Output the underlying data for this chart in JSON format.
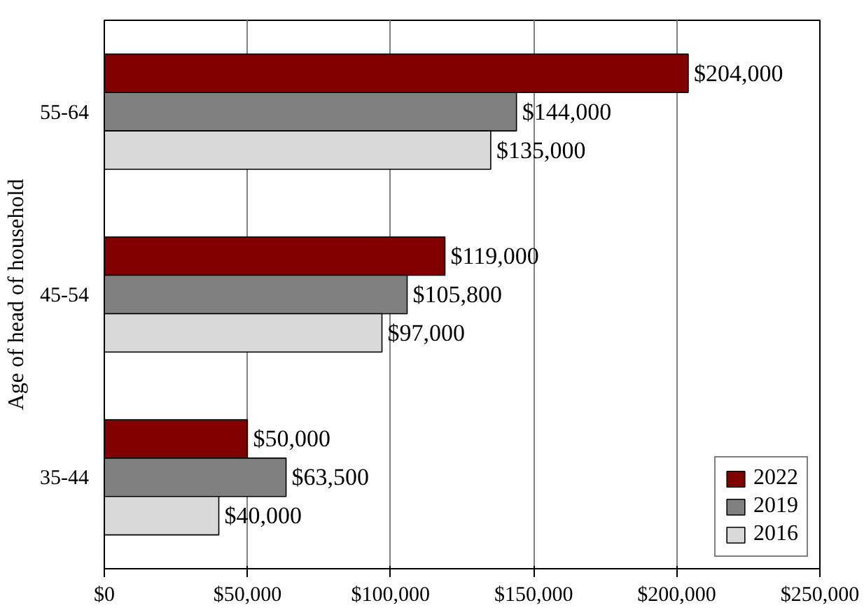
{
  "chart_data": {
    "type": "bar",
    "orientation": "horizontal",
    "ylabel": "Age of head of household",
    "categories": [
      "55-64",
      "45-54",
      "35-44"
    ],
    "series": [
      {
        "name": "2022",
        "color": "#800000",
        "values": [
          204000,
          119000,
          50000
        ],
        "value_labels": [
          "$204,000",
          "$119,000",
          "$50,000"
        ]
      },
      {
        "name": "2019",
        "color": "#808080",
        "values": [
          144000,
          105800,
          63500
        ],
        "value_labels": [
          "$144,000",
          "$105,800",
          "$63,500"
        ]
      },
      {
        "name": "2016",
        "color": "#d9d9d9",
        "values": [
          135000,
          97000,
          40000
        ],
        "value_labels": [
          "$135,000",
          "$97,000",
          "$40,000"
        ]
      }
    ],
    "xlim": [
      0,
      250000
    ],
    "xticks": [
      {
        "value": 0,
        "label": "$0"
      },
      {
        "value": 50000,
        "label": "$50,000"
      },
      {
        "value": 100000,
        "label": "$100,000"
      },
      {
        "value": 150000,
        "label": "$150,000"
      },
      {
        "value": 200000,
        "label": "$200,000"
      },
      {
        "value": 250000,
        "label": "$250,000"
      }
    ],
    "grid": "x",
    "legend": "bottom right"
  }
}
